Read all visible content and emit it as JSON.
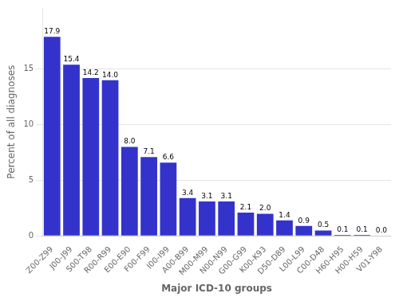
{
  "chart_data": {
    "type": "bar",
    "categories": [
      "Z00-Z99",
      "J00-J99",
      "S00-T98",
      "R00-R99",
      "E00-E90",
      "F00-F99",
      "I00-I99",
      "A00-B99",
      "M00-M99",
      "N00-N99",
      "G00-G99",
      "K00-K93",
      "D50-D89",
      "L00-L99",
      "C00-D48",
      "H60-H95",
      "H00-H59",
      "V01-Y98"
    ],
    "values": [
      17.9,
      15.4,
      14.2,
      14.0,
      8.0,
      7.1,
      6.6,
      3.4,
      3.1,
      3.1,
      2.1,
      2.0,
      1.4,
      0.9,
      0.5,
      0.1,
      0.1,
      0.0
    ],
    "value_labels": [
      "17.9",
      "15.4",
      "14.2",
      "14.0",
      "8.0",
      "7.1",
      "6.6",
      "3.4",
      "3.1",
      "3.1",
      "2.1",
      "2.0",
      "1.4",
      "0.9",
      "0.5",
      "0.1",
      "0.1",
      "0.0"
    ],
    "data_labels": true,
    "color": "#3333CC",
    "ylabel": "Percent of all diagnoses",
    "xlabel": "Major ICD-10 groups",
    "ylim": [
      0,
      20.5
    ],
    "yticks": [
      0,
      5,
      10,
      15
    ],
    "grid": true
  }
}
